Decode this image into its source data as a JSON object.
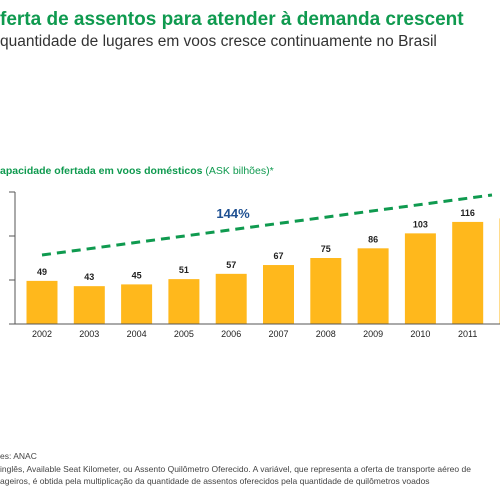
{
  "header": {
    "title": "ferta de assentos para atender à demanda crescent",
    "subtitle": "quantidade de lugares em voos cresce continuamente no Brasil"
  },
  "chart_heading": {
    "main": "apacidade ofertada em voos domésticos",
    "unit": " (ASK bilhões)*"
  },
  "chart_data": {
    "type": "bar",
    "categories": [
      "2002",
      "2003",
      "2004",
      "2005",
      "2006",
      "2007",
      "2008",
      "2009",
      "2010",
      "2011",
      ""
    ],
    "values": [
      49,
      43,
      45,
      51,
      57,
      67,
      75,
      86,
      103,
      116,
      120
    ],
    "value_labels": [
      "49",
      "43",
      "45",
      "51",
      "57",
      "67",
      "75",
      "86",
      "103",
      "116",
      ""
    ],
    "ylim": [
      0,
      150
    ],
    "grid": false,
    "bar_color": "#ffb81c",
    "trend": {
      "label": "144%",
      "style": "dashed",
      "color": "#0f9a4f"
    }
  },
  "footer": {
    "source": "es: ANAC",
    "note_line1": "inglês, Available Seat Kilometer, ou Assento Quilômetro Oferecido. A variável, que representa a oferta de transporte aéreo de",
    "note_line2": "ageiros, é obtida pela multiplicação da quantidade de assentos oferecidos pela quantidade de quilômetros voados"
  }
}
